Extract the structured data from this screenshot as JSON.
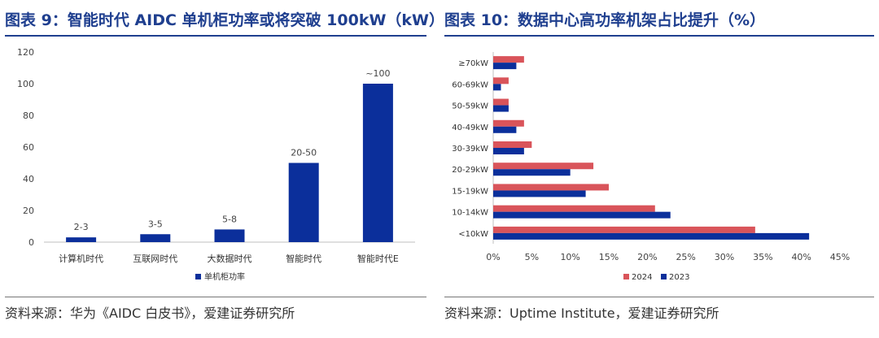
{
  "left": {
    "title": "图表 9：智能时代 AIDC 单机柜功率或将突破 100kW（kW）",
    "source": "资料来源：华为《AIDC 白皮书》，爱建证券研究所"
  },
  "right": {
    "title": "图表 10：数据中心高功率机架占比提升（%）",
    "source": "资料来源：Uptime Institute，爱建证券研究所"
  },
  "colors": {
    "blue": "#0b2f9b",
    "red": "#d9545a",
    "title": "#1f3f8f"
  },
  "chart_data": [
    {
      "type": "bar",
      "categories": [
        "计算机时代",
        "互联网时代",
        "大数据时代",
        "智能时代",
        "智能时代E"
      ],
      "values": [
        3,
        5,
        8,
        50,
        100
      ],
      "data_labels": [
        "2-3",
        "3-5",
        "5-8",
        "20-50",
        "~100"
      ],
      "series": [
        {
          "name": "单机柜功率",
          "values": [
            3,
            5,
            8,
            50,
            100
          ]
        }
      ],
      "ylim": [
        0,
        120
      ],
      "yticks": [
        "0",
        "20",
        "40",
        "60",
        "80",
        "100",
        "120"
      ],
      "grid": false,
      "legend": "bottom"
    },
    {
      "type": "bar",
      "orientation": "horizontal",
      "categories": [
        "≥70kW",
        "60-69kW",
        "50-59kW",
        "40-49kW",
        "30-39kW",
        "20-29kW",
        "15-19kW",
        "10-14kW",
        "<10kW"
      ],
      "series": [
        {
          "name": "2024",
          "values": [
            4,
            2,
            2,
            4,
            5,
            13,
            15,
            21,
            34
          ]
        },
        {
          "name": "2023",
          "values": [
            3,
            1,
            2,
            3,
            4,
            10,
            12,
            23,
            41
          ]
        }
      ],
      "xlim": [
        0,
        45
      ],
      "xticks": [
        "0%",
        "5%",
        "10%",
        "15%",
        "20%",
        "25%",
        "30%",
        "35%",
        "40%",
        "45%"
      ],
      "grid": false,
      "legend": "bottom"
    }
  ]
}
